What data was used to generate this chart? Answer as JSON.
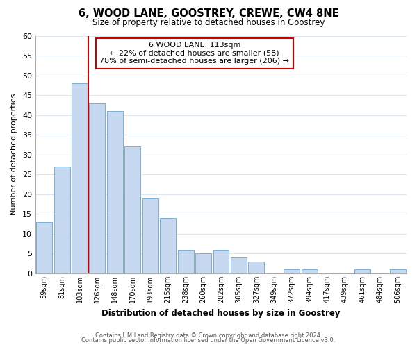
{
  "title": "6, WOOD LANE, GOOSTREY, CREWE, CW4 8NE",
  "subtitle": "Size of property relative to detached houses in Goostrey",
  "xlabel": "Distribution of detached houses by size in Goostrey",
  "ylabel": "Number of detached properties",
  "bar_labels": [
    "59sqm",
    "81sqm",
    "103sqm",
    "126sqm",
    "148sqm",
    "170sqm",
    "193sqm",
    "215sqm",
    "238sqm",
    "260sqm",
    "282sqm",
    "305sqm",
    "327sqm",
    "349sqm",
    "372sqm",
    "394sqm",
    "417sqm",
    "439sqm",
    "461sqm",
    "484sqm",
    "506sqm"
  ],
  "bar_heights": [
    13,
    27,
    48,
    43,
    41,
    32,
    19,
    14,
    6,
    5,
    6,
    4,
    3,
    0,
    1,
    1,
    0,
    0,
    1,
    0,
    1
  ],
  "bar_color": "#c6d9f0",
  "bar_edge_color": "#7bafd4",
  "vline_x_idx": 2,
  "vline_color": "#cc0000",
  "ylim": [
    0,
    60
  ],
  "yticks": [
    0,
    5,
    10,
    15,
    20,
    25,
    30,
    35,
    40,
    45,
    50,
    55,
    60
  ],
  "annotation_title": "6 WOOD LANE: 113sqm",
  "annotation_line1": "← 22% of detached houses are smaller (58)",
  "annotation_line2": "78% of semi-detached houses are larger (206) →",
  "annotation_box_color": "#ffffff",
  "annotation_box_edge": "#cc0000",
  "footer1": "Contains HM Land Registry data © Crown copyright and database right 2024.",
  "footer2": "Contains public sector information licensed under the Open Government Licence v3.0.",
  "background_color": "#ffffff",
  "grid_color": "#dce6f1"
}
